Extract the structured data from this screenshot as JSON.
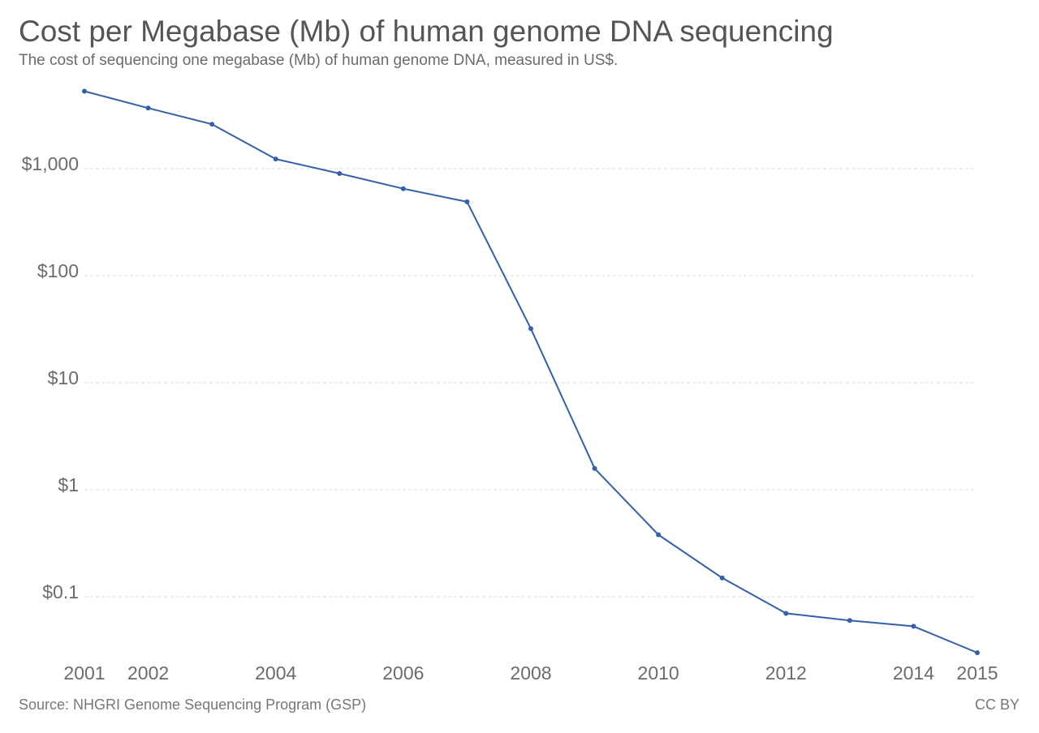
{
  "title": "Cost per Megabase (Mb) of human genome DNA sequencing",
  "subtitle": "The cost of sequencing one megabase (Mb) of human genome DNA, measured in US$.",
  "footer": {
    "source": "Source: NHGRI Genome Sequencing Program (GSP)",
    "license": "CC BY"
  },
  "colors": {
    "line": "#3360a9",
    "grid": "#dddddd",
    "text": "#6b6b6b"
  },
  "chart_data": {
    "type": "line",
    "title": "Cost per Megabase (Mb) of human genome DNA sequencing",
    "subtitle": "The cost of sequencing one megabase (Mb) of human genome DNA, measured in US$.",
    "yscale": "log",
    "ylim": [
      0.03,
      6000
    ],
    "xlim": [
      2001,
      2015
    ],
    "grid": true,
    "x_ticks": [
      2001,
      2002,
      2004,
      2006,
      2008,
      2010,
      2012,
      2014,
      2015
    ],
    "x_tick_labels": [
      "2001",
      "2002",
      "2004",
      "2006",
      "2008",
      "2010",
      "2012",
      "2014",
      "2015"
    ],
    "y_ticks": [
      0.1,
      1,
      10,
      100,
      1000
    ],
    "y_tick_labels": [
      "$0.1",
      "$1",
      "$10",
      "$100",
      "$1,000"
    ],
    "series": [
      {
        "x": [
          2001,
          2002,
          2003,
          2004,
          2005,
          2006,
          2007,
          2008,
          2009,
          2010,
          2011,
          2012,
          2013,
          2014,
          2015
        ],
        "values": [
          5292,
          3680,
          2600,
          1230,
          900,
          650,
          490,
          32,
          1.58,
          0.38,
          0.15,
          0.07,
          0.06,
          0.053,
          0.03
        ]
      }
    ]
  }
}
